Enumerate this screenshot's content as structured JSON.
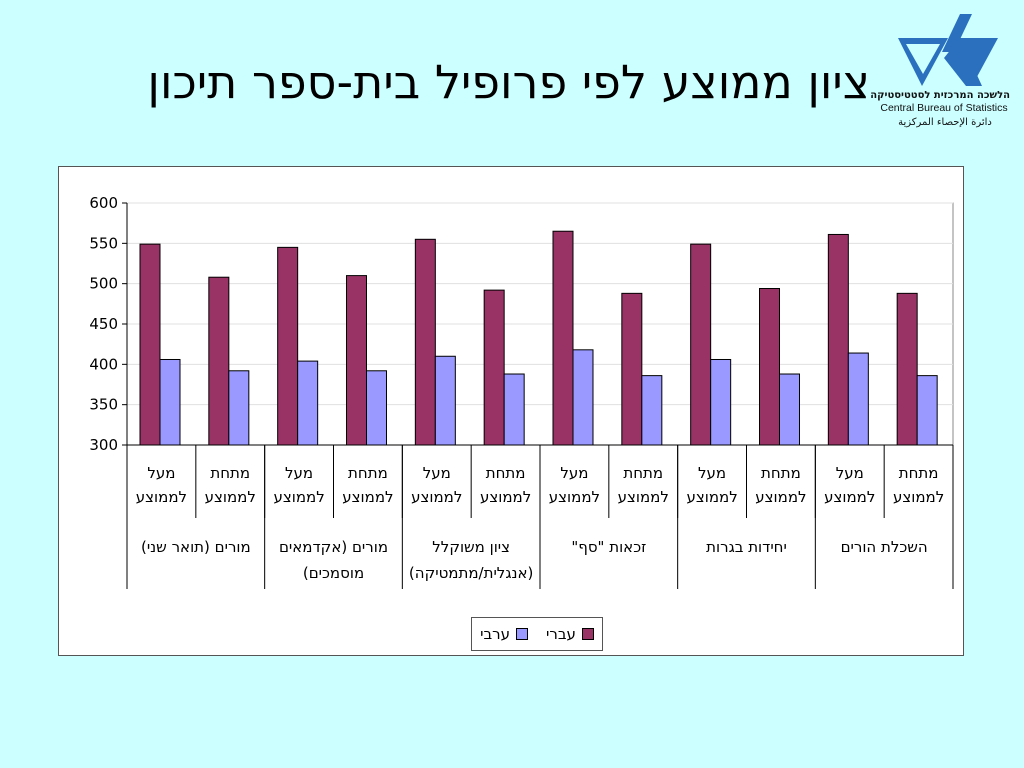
{
  "page": {
    "title": "ציון ממוצע לפי פרופיל בית-ספר תיכון"
  },
  "logo": {
    "hebrew": "הלשכה המרכזית לסטטיסטיקה",
    "english": "Central Bureau of Statistics",
    "arabic": "دائرة الإحصاء المركزية"
  },
  "chart_data": {
    "type": "bar",
    "categories": [
      "מתחת\nלממוצע",
      "מעל\nלממוצע",
      "מתחת\nלממוצע",
      "מעל\nלממוצע",
      "מתחת\nלממוצע",
      "מעל\nלממוצע",
      "מתחת\nלממוצע",
      "מעל\nלממוצע",
      "מתחת\nלממוצע",
      "מעל\nלממוצע",
      "מתחת\nלממוצע",
      "מעל\nלממוצע"
    ],
    "groups": [
      "השכלת הורים",
      "יחידות בגרות",
      "זכאות \"סף\"",
      "ציון משוקלל\n(אנגלית/מתמטיקה)",
      "מורים (אקדמאים\nמוסמכים)",
      "מורים (תואר שני)"
    ],
    "series": [
      {
        "name": "עברי",
        "color": "#993366",
        "values": [
          488,
          561,
          494,
          549,
          488,
          565,
          492,
          555,
          510,
          545,
          508,
          549
        ]
      },
      {
        "name": "ערבי",
        "color": "#9999ff",
        "values": [
          386,
          414,
          388,
          406,
          386,
          418,
          388,
          410,
          392,
          404,
          392,
          406
        ]
      }
    ],
    "ylim": [
      300,
      600
    ],
    "yticks": [
      300,
      350,
      400,
      450,
      500,
      550,
      600
    ],
    "grid": true,
    "legend": "bottom"
  }
}
